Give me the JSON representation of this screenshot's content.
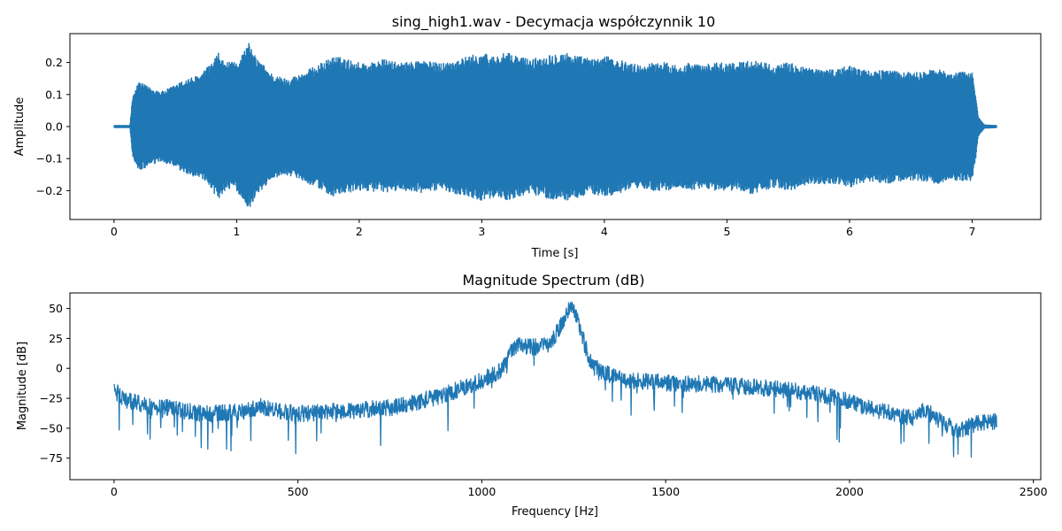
{
  "chart_data": [
    {
      "type": "line",
      "title": "sing_high1.wav - Decymacja współczynnik 10",
      "xlabel": "Time [s]",
      "ylabel": "Amplitude",
      "xlim": [
        -0.36,
        7.56
      ],
      "ylim": [
        -0.29,
        0.29
      ],
      "x_ticks": [
        "0",
        "1",
        "2",
        "3",
        "4",
        "5",
        "6",
        "7"
      ],
      "y_ticks": [
        "−0.2",
        "−0.1",
        "0.0",
        "0.1",
        "0.2"
      ],
      "x_tick_values": [
        0,
        1,
        2,
        3,
        4,
        5,
        6,
        7
      ],
      "y_tick_values": [
        -0.2,
        -0.1,
        0.0,
        0.1,
        0.2
      ],
      "grid": false,
      "color": "#1f77b4",
      "series": [
        {
          "envelope_x": [
            0,
            0.13,
            0.15,
            0.2,
            0.3,
            0.4,
            0.5,
            0.6,
            0.7,
            0.8,
            0.85,
            0.9,
            1.0,
            1.05,
            1.1,
            1.15,
            1.2,
            1.3,
            1.4,
            1.5,
            1.6,
            1.7,
            1.8,
            1.9,
            2.0,
            2.1,
            2.2,
            2.3,
            2.4,
            2.5,
            2.6,
            2.7,
            2.8,
            2.9,
            3.0,
            3.1,
            3.2,
            3.3,
            3.4,
            3.5,
            3.6,
            3.7,
            3.8,
            3.9,
            4.0,
            4.1,
            4.2,
            4.3,
            4.4,
            4.5,
            4.6,
            4.7,
            4.8,
            4.9,
            5.0,
            5.1,
            5.2,
            5.3,
            5.4,
            5.5,
            5.6,
            5.7,
            5.8,
            5.9,
            6.0,
            6.1,
            6.2,
            6.3,
            6.4,
            6.5,
            6.6,
            6.7,
            6.8,
            6.9,
            7.0,
            7.03,
            7.05,
            7.1,
            7.2
          ],
          "envelope_upper": [
            0.003,
            0.003,
            0.09,
            0.14,
            0.12,
            0.11,
            0.13,
            0.15,
            0.16,
            0.2,
            0.23,
            0.2,
            0.2,
            0.23,
            0.26,
            0.22,
            0.2,
            0.16,
            0.15,
            0.16,
            0.18,
            0.2,
            0.22,
            0.21,
            0.2,
            0.2,
            0.21,
            0.2,
            0.2,
            0.21,
            0.2,
            0.2,
            0.21,
            0.22,
            0.23,
            0.22,
            0.23,
            0.22,
            0.21,
            0.22,
            0.23,
            0.23,
            0.22,
            0.21,
            0.22,
            0.21,
            0.2,
            0.19,
            0.2,
            0.2,
            0.19,
            0.2,
            0.19,
            0.2,
            0.2,
            0.2,
            0.21,
            0.2,
            0.19,
            0.2,
            0.19,
            0.18,
            0.18,
            0.18,
            0.19,
            0.18,
            0.17,
            0.18,
            0.17,
            0.17,
            0.17,
            0.18,
            0.17,
            0.17,
            0.17,
            0.1,
            0.03,
            0.005,
            0.003
          ]
        }
      ]
    },
    {
      "type": "line",
      "title": "Magnitude Spectrum (dB)",
      "xlabel": "Frequency [Hz]",
      "ylabel": "Magnitude [dB]",
      "xlim": [
        -120,
        2520
      ],
      "ylim": [
        -93,
        63
      ],
      "x_ticks": [
        "0",
        "500",
        "1000",
        "1500",
        "2000",
        "2500"
      ],
      "y_ticks": [
        "−75",
        "−50",
        "−25",
        "0",
        "25",
        "50"
      ],
      "x_tick_values": [
        0,
        500,
        1000,
        1500,
        2000,
        2500
      ],
      "y_tick_values": [
        -75,
        -50,
        -25,
        0,
        25,
        50
      ],
      "grid": false,
      "color": "#1f77b4",
      "series": [
        {
          "x": [
            0,
            20,
            50,
            100,
            150,
            200,
            250,
            300,
            350,
            400,
            450,
            500,
            550,
            600,
            650,
            700,
            750,
            800,
            850,
            900,
            950,
            1000,
            1050,
            1080,
            1100,
            1120,
            1150,
            1180,
            1200,
            1220,
            1240,
            1260,
            1280,
            1300,
            1350,
            1400,
            1450,
            1500,
            1550,
            1600,
            1650,
            1700,
            1750,
            1800,
            1850,
            1900,
            1950,
            2000,
            2050,
            2100,
            2150,
            2180,
            2200,
            2220,
            2250,
            2280,
            2300,
            2330,
            2360,
            2400
          ],
          "y": [
            -15,
            -25,
            -28,
            -32,
            -33,
            -36,
            -38,
            -37,
            -36,
            -32,
            -36,
            -38,
            -37,
            -35,
            -36,
            -34,
            -33,
            -30,
            -26,
            -22,
            -16,
            -10,
            -2,
            14,
            22,
            18,
            18,
            20,
            28,
            38,
            52,
            42,
            20,
            2,
            -6,
            -10,
            -11,
            -12,
            -13,
            -13,
            -14,
            -15,
            -16,
            -17,
            -19,
            -21,
            -24,
            -28,
            -33,
            -37,
            -40,
            -41,
            -34,
            -38,
            -45,
            -50,
            -52,
            -48,
            -45,
            -44
          ]
        }
      ]
    }
  ]
}
